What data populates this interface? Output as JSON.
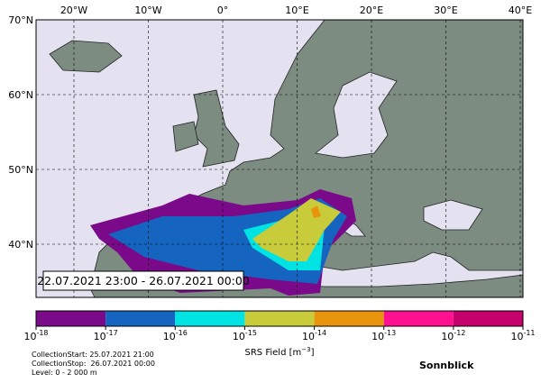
{
  "map": {
    "lon_ticks": [
      "20°W",
      "10°W",
      "0°",
      "10°E",
      "20°E",
      "30°E",
      "40°E"
    ],
    "lat_ticks": [
      "70°N",
      "60°N",
      "50°N",
      "40°N"
    ],
    "time_range": "22.07.2021 23:00 - 26.07.2021 00:00"
  },
  "colorbar": {
    "colors": [
      "#7a0a8a",
      "#1565c0",
      "#00e3e3",
      "#c9cc3a",
      "#e8940c",
      "#ff1090",
      "#c4006c"
    ],
    "ticks": [
      {
        "base": "10",
        "exponent": "-18"
      },
      {
        "base": "10",
        "exponent": "-17"
      },
      {
        "base": "10",
        "exponent": "-16"
      },
      {
        "base": "10",
        "exponent": "-15"
      },
      {
        "base": "10",
        "exponent": "-14"
      },
      {
        "base": "10",
        "exponent": "-13"
      },
      {
        "base": "10",
        "exponent": "-12"
      },
      {
        "base": "10",
        "exponent": "-11"
      }
    ],
    "label": {
      "prefix": "SRS Field [m",
      "exponent": "−3",
      "suffix": "]"
    }
  },
  "footer": {
    "lines": [
      "CollectionStart: 25.07.2021 21:00",
      "CollectionStop:  26.07.2021 00:00",
      "Level: 0 - 2 000 m"
    ],
    "station": "Sonnblick"
  }
}
